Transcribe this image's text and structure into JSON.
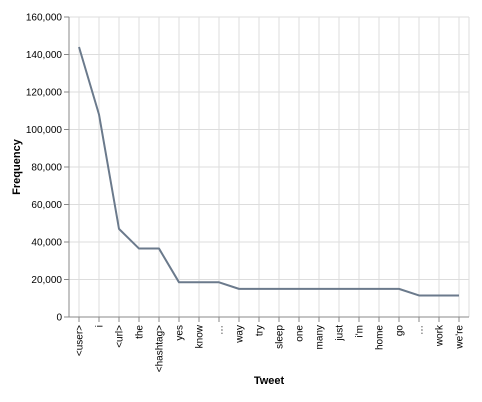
{
  "chart_data": {
    "type": "line",
    "xlabel": "Tweet",
    "ylabel": "Frequency",
    "ylim": [
      0,
      160000
    ],
    "y_ticks": [
      0,
      20000,
      40000,
      60000,
      80000,
      100000,
      120000,
      140000,
      160000
    ],
    "y_tick_labels": [
      "0",
      "20,000",
      "40,000",
      "60,000",
      "80,000",
      "100,000",
      "120,000",
      "140,000",
      "160,000"
    ],
    "grid": true,
    "line_color": "#6b7a8c",
    "categories": [
      "<user>",
      "i",
      "<url>",
      "the",
      "<hashtag>",
      "yes",
      "know",
      "…",
      "way",
      "try",
      "sleep",
      "one",
      "many",
      "just",
      "i'm",
      "home",
      "go",
      "…",
      "work",
      "we're"
    ],
    "values": [
      144000,
      108000,
      47000,
      36500,
      36500,
      18500,
      18500,
      18500,
      15000,
      15000,
      15000,
      15000,
      15000,
      15000,
      15000,
      15000,
      15000,
      11500,
      11500,
      11500
    ]
  }
}
